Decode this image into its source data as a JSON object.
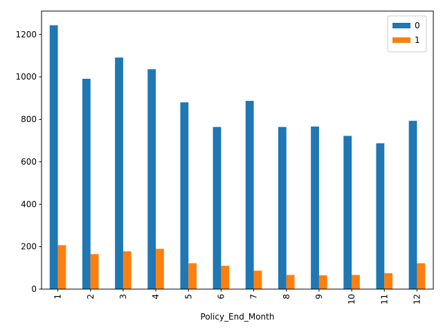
{
  "chart_data": {
    "type": "bar",
    "title": "",
    "xlabel": "Policy_End_Month",
    "ylabel": "",
    "categories": [
      "1",
      "2",
      "3",
      "4",
      "5",
      "6",
      "7",
      "8",
      "9",
      "10",
      "11",
      "12"
    ],
    "series": [
      {
        "name": "0",
        "color": "#1f77b4",
        "values": [
          1243,
          991,
          1091,
          1036,
          880,
          764,
          887,
          764,
          766,
          722,
          687,
          793
        ]
      },
      {
        "name": "1",
        "color": "#ff7f0e",
        "values": [
          207,
          165,
          178,
          190,
          122,
          110,
          87,
          67,
          65,
          67,
          75,
          122
        ]
      }
    ],
    "ylim": [
      0,
      1310
    ],
    "yticks": [
      0,
      200,
      400,
      600,
      800,
      1000,
      1200
    ],
    "grid": false,
    "legend_position": "top-right"
  }
}
